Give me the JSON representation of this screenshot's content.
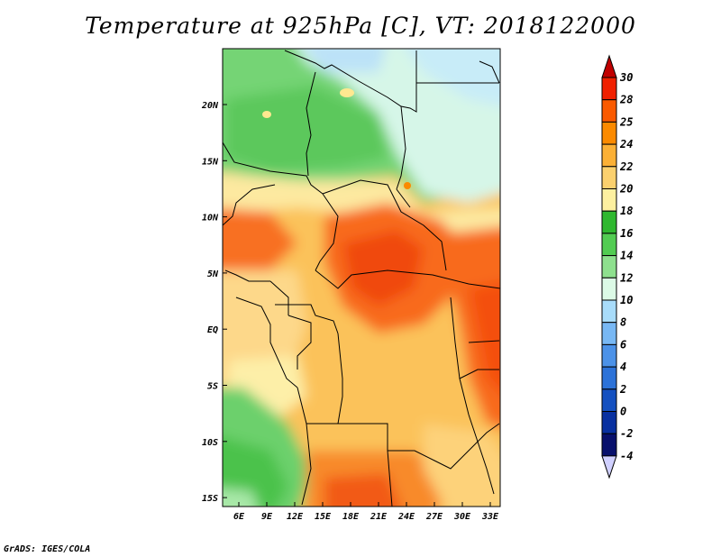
{
  "title": "Temperature at 925hPa [C], VT: 2018122000",
  "credit": "GrADS: IGES/COLA",
  "map": {
    "region": "Central Africa",
    "lon_labels": [
      "6E",
      "9E",
      "12E",
      "15E",
      "18E",
      "21E",
      "24E",
      "27E",
      "30E",
      "33E"
    ],
    "lat_labels": [
      "20N",
      "15N",
      "10N",
      "5N",
      "EQ",
      "5S",
      "10S",
      "15S"
    ]
  },
  "colorbar": {
    "labels": [
      "30",
      "28",
      "25",
      "24",
      "22",
      "20",
      "18",
      "16",
      "14",
      "12",
      "10",
      "8",
      "6",
      "4",
      "2",
      "0",
      "-2",
      "-4"
    ],
    "colors": [
      "#f02000",
      "#fa5a00",
      "#fb8a00",
      "#fbb036",
      "#fbd06e",
      "#fdf0a0",
      "#2fb82f",
      "#52cc52",
      "#8ee08e",
      "#dcfae6",
      "#a8dcfa",
      "#78b8f4",
      "#4c92e8",
      "#2c72d8",
      "#1450c0",
      "#0830a0",
      "#08106c"
    ],
    "top_arrow_color": "#c00000",
    "bottom_arrow_color": "#d0d0ff"
  }
}
